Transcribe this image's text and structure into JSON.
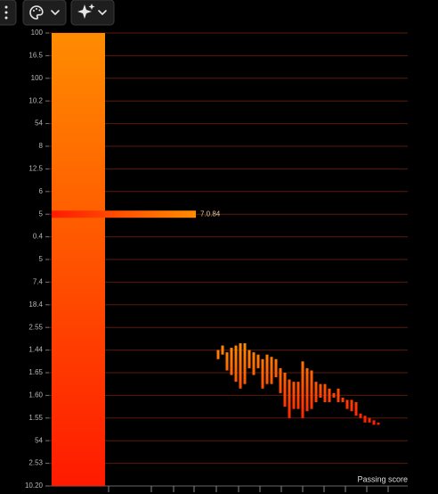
{
  "chart_data": {
    "type": "range-bar",
    "x_label": "Passing score",
    "ylim": [
      0,
      20
    ],
    "yticks": [
      {
        "value": 0,
        "label": "10.20"
      },
      {
        "value": 1,
        "label": "2.53"
      },
      {
        "value": 2,
        "label": "54"
      },
      {
        "value": 3,
        "label": "1.55"
      },
      {
        "value": 4,
        "label": "1.60"
      },
      {
        "value": 5,
        "label": "1.65"
      },
      {
        "value": 6,
        "label": "1.44"
      },
      {
        "value": 7,
        "label": "2.55"
      },
      {
        "value": 8,
        "label": "18.4"
      },
      {
        "value": 9,
        "label": "7.4"
      },
      {
        "value": 10,
        "label": "5"
      },
      {
        "value": 11,
        "label": "0.4"
      },
      {
        "value": 12,
        "label": "5"
      },
      {
        "value": 13,
        "label": "6"
      },
      {
        "value": 14,
        "label": "12.5"
      },
      {
        "value": 15,
        "label": "8"
      },
      {
        "value": 16,
        "label": "54"
      },
      {
        "value": 17,
        "label": "10.2"
      },
      {
        "value": 18,
        "label": "100"
      },
      {
        "value": 19,
        "label": "16.5"
      },
      {
        "value": 20,
        "label": "100"
      }
    ],
    "xlim": [
      0,
      80
    ],
    "xticks": [
      13.4,
      23,
      28,
      32.6,
      37.6,
      42.6,
      47.4,
      52.2,
      57,
      61.8,
      66.6,
      71.4,
      76.2
    ],
    "grid": true,
    "color_top": "#ff8c00",
    "color_bottom": "#ff1a00",
    "grid_color": "#5c1a0c",
    "bar": {
      "x": [
        0.6,
        12.6
      ],
      "value": 20
    },
    "hbar": {
      "y": 12,
      "value": 33,
      "annotation": "7.0.84"
    },
    "x": [
      38,
      39,
      40,
      41,
      42,
      43,
      44,
      45,
      46,
      47,
      48,
      49,
      50,
      51,
      52,
      53,
      54,
      55,
      56,
      57,
      58,
      59,
      60,
      61,
      62,
      63,
      64,
      65,
      66,
      67,
      68,
      69,
      70,
      71,
      72,
      73,
      74
    ],
    "series": [
      {
        "low": [
          5.6,
          5.8,
          5.1,
          4.9,
          4.6,
          4.3,
          4.5,
          5.2,
          4.9,
          5.2,
          4.3,
          4.5,
          4.5,
          4.8,
          4.1,
          3.5,
          3.0,
          3.4,
          3.4,
          3.0,
          3.3,
          3.4,
          3.7,
          3.9,
          3.7,
          3.7,
          3.9,
          3.7,
          3.7,
          3.4,
          3.3,
          3.1,
          3.0,
          2.8,
          2.8,
          2.7,
          2.7
        ],
        "high": [
          6.0,
          6.2,
          5.9,
          6.1,
          6.2,
          6.3,
          6.3,
          6.0,
          5.9,
          5.8,
          5.6,
          5.8,
          5.7,
          5.6,
          5.2,
          5.0,
          4.7,
          4.6,
          4.6,
          5.5,
          5.2,
          5.1,
          4.6,
          4.5,
          4.5,
          4.3,
          4.1,
          4.3,
          3.9,
          3.8,
          3.8,
          3.7,
          3.2,
          3.1,
          3.0,
          2.9,
          2.8
        ]
      }
    ]
  }
}
